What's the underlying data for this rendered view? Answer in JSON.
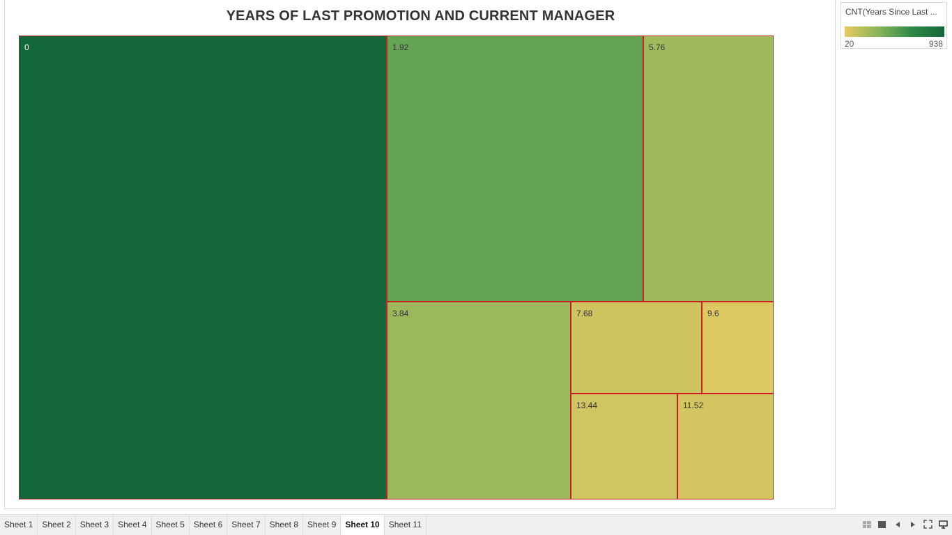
{
  "chart_data": {
    "type": "treemap",
    "title": "YEARS OF LAST PROMOTION AND CURRENT MANAGER",
    "color_measure": "CNT(Years Since Last ...",
    "color_range": [
      20,
      938
    ],
    "border_color": "#c8201e",
    "gradient": [
      "#e8ca62",
      "#89b55b",
      "#2f8a48",
      "#14673a"
    ],
    "cells": [
      {
        "label": "0",
        "count": 938
      },
      {
        "label": "1.92",
        "count": 375
      },
      {
        "label": "3.84",
        "count": 200
      },
      {
        "label": "5.76",
        "count": 190
      },
      {
        "label": "7.68",
        "count": 66
      },
      {
        "label": "13.44",
        "count": 62
      },
      {
        "label": "11.52",
        "count": 56
      },
      {
        "label": "9.6",
        "count": 36
      }
    ]
  },
  "legend": {
    "title": "CNT(Years Since Last ...",
    "min_label": "20",
    "max_label": "938"
  },
  "tabs": [
    "Sheet 1",
    "Sheet 2",
    "Sheet 3",
    "Sheet 4",
    "Sheet 5",
    "Sheet 6",
    "Sheet 7",
    "Sheet 8",
    "Sheet 9",
    "Sheet 10",
    "Sheet 11"
  ],
  "active_tab": "Sheet 10",
  "controls": [
    "grid-view-icon",
    "single-view-icon",
    "prev-sheet-icon",
    "next-sheet-icon",
    "fullscreen-icon",
    "presentation-icon"
  ]
}
